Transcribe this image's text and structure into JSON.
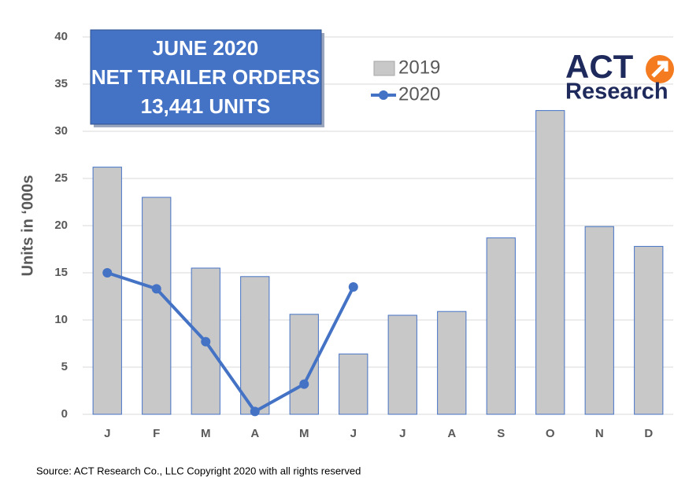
{
  "chart_data": {
    "type": "bar",
    "title": [
      "JUNE 2020",
      "NET TRAILER ORDERS",
      "13,441 UNITS"
    ],
    "logo": [
      "ACT",
      "Research"
    ],
    "y_label": "Units in ‘000s",
    "source": "Source:  ACT Research Co., LLC  Copyright 2020 with  all rights reserved",
    "categories": [
      "J",
      "F",
      "M",
      "A",
      "M",
      "J",
      "J",
      "A",
      "S",
      "O",
      "N",
      "D"
    ],
    "series": [
      {
        "name": "2019",
        "type": "bar",
        "color": "#c8c8c8",
        "edge": "#4472c4",
        "values": [
          26.2,
          23.0,
          15.5,
          14.6,
          10.6,
          6.4,
          10.5,
          10.9,
          18.7,
          32.2,
          19.9,
          17.8
        ]
      },
      {
        "name": "2020",
        "type": "line",
        "color": "#4472c4",
        "values": [
          15.0,
          13.3,
          7.7,
          0.3,
          3.2,
          13.5,
          null,
          null,
          null,
          null,
          null,
          null
        ]
      }
    ],
    "ylim": [
      0,
      40
    ],
    "yticks": [
      0,
      5,
      10,
      15,
      20,
      25,
      30,
      35,
      40
    ],
    "grid": true
  }
}
